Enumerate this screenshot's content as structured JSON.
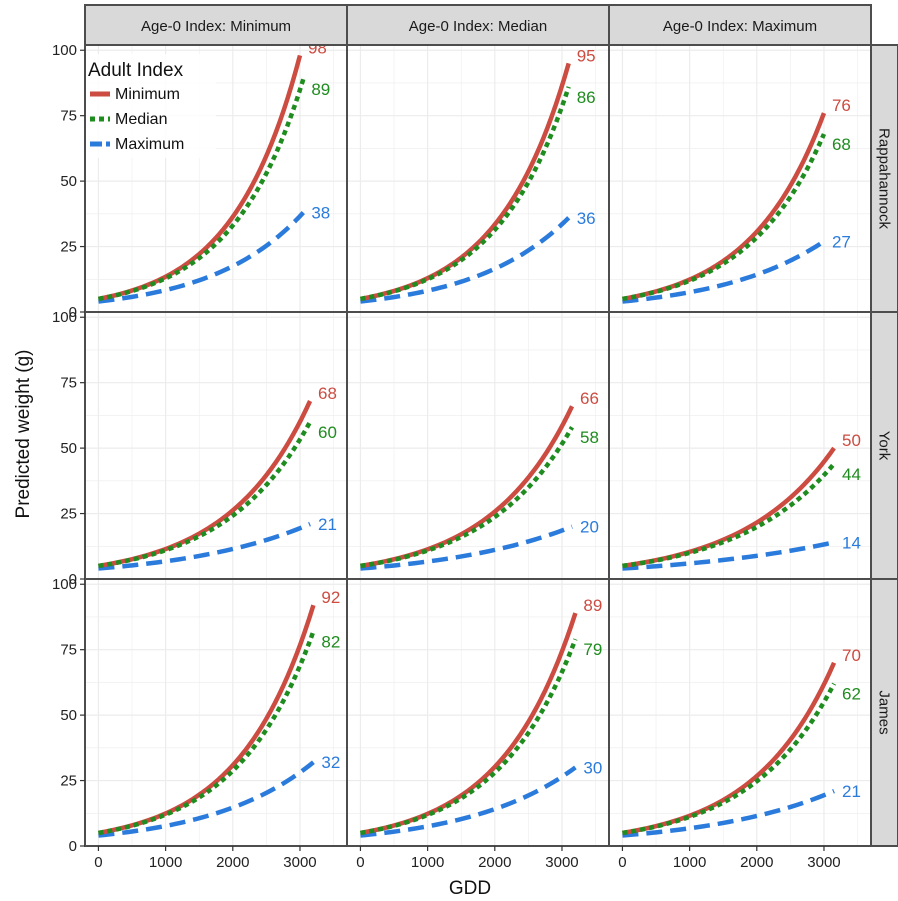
{
  "chart_data": {
    "type": "line",
    "xlabel": "GDD",
    "ylabel": "Predicted weight (g)",
    "xlim": [
      -200,
      3700
    ],
    "ylim": [
      0,
      102
    ],
    "xticks": [
      0,
      1000,
      2000,
      3000
    ],
    "yticks": [
      0,
      25,
      50,
      75,
      100
    ],
    "grid": true,
    "col_strips": [
      "Age-0 Index: Minimum",
      "Age-0 Index: Median",
      "Age-0 Index: Maximum"
    ],
    "row_strips": [
      "Rappahannock",
      "York",
      "James"
    ],
    "legend": {
      "title": "Adult Index",
      "position": "top-left",
      "entries": [
        {
          "name": "Minimum",
          "color": "#cc4c41",
          "dash": "solid"
        },
        {
          "name": "Median",
          "color": "#1e8c1e",
          "dash": "dotted"
        },
        {
          "name": "Maximum",
          "color": "#2a7bdc",
          "dash": "dashed"
        }
      ]
    },
    "series_names": [
      "Minimum",
      "Median",
      "Maximum"
    ],
    "colors": [
      "#cc4c41",
      "#1e8c1e",
      "#2a7bdc"
    ],
    "start_values": [
      5,
      5,
      4
    ],
    "panels": [
      {
        "row": 0,
        "col": 0,
        "x_end": [
          3000,
          3050,
          3050
        ],
        "end_values": [
          98,
          89,
          38
        ]
      },
      {
        "row": 0,
        "col": 1,
        "x_end": [
          3100,
          3100,
          3100
        ],
        "end_values": [
          95,
          86,
          36
        ]
      },
      {
        "row": 0,
        "col": 2,
        "x_end": [
          3000,
          3000,
          3000
        ],
        "end_values": [
          76,
          68,
          27
        ]
      },
      {
        "row": 1,
        "col": 0,
        "x_end": [
          3150,
          3150,
          3150
        ],
        "end_values": [
          68,
          60,
          21
        ]
      },
      {
        "row": 1,
        "col": 1,
        "x_end": [
          3150,
          3150,
          3150
        ],
        "end_values": [
          66,
          58,
          20
        ]
      },
      {
        "row": 1,
        "col": 2,
        "x_end": [
          3150,
          3150,
          3150
        ],
        "end_values": [
          50,
          44,
          14
        ]
      },
      {
        "row": 2,
        "col": 0,
        "x_end": [
          3200,
          3200,
          3200
        ],
        "end_values": [
          92,
          82,
          32
        ]
      },
      {
        "row": 2,
        "col": 1,
        "x_end": [
          3200,
          3200,
          3200
        ],
        "end_values": [
          89,
          79,
          30
        ]
      },
      {
        "row": 2,
        "col": 2,
        "x_end": [
          3150,
          3150,
          3150
        ],
        "end_values": [
          70,
          62,
          21
        ]
      }
    ]
  }
}
